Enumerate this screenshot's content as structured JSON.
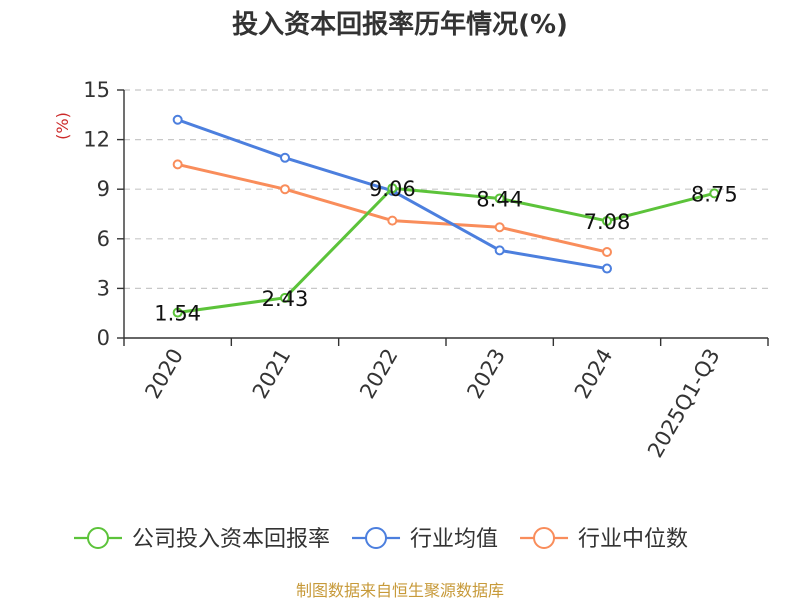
{
  "chart_data": {
    "type": "line",
    "title": "投入资本回报率历年情况(%)",
    "ylabel": "(%)",
    "categories": [
      "2020",
      "2021",
      "2022",
      "2023",
      "2024",
      "2025Q1-Q3"
    ],
    "ylim": [
      0,
      15
    ],
    "yticks": [
      0,
      3,
      6,
      9,
      12,
      15
    ],
    "grid": true,
    "legend_position": "bottom",
    "series": [
      {
        "name": "公司投入资本回报率",
        "color": "#5cc33a",
        "values": [
          1.54,
          2.43,
          9.06,
          8.44,
          7.08,
          8.75
        ],
        "show_labels": true
      },
      {
        "name": "行业均值",
        "color": "#4c7fde",
        "values": [
          13.2,
          10.9,
          8.9,
          5.3,
          4.2,
          null
        ],
        "show_labels": false
      },
      {
        "name": "行业中位数",
        "color": "#f98d5b",
        "values": [
          10.5,
          9.0,
          7.1,
          6.7,
          5.2,
          null
        ],
        "show_labels": false
      }
    ],
    "ylabel_color": "#cc2a2a"
  },
  "footer": {
    "source": "制图数据来自恒生聚源数据库",
    "source_color": "#c79a3a"
  }
}
